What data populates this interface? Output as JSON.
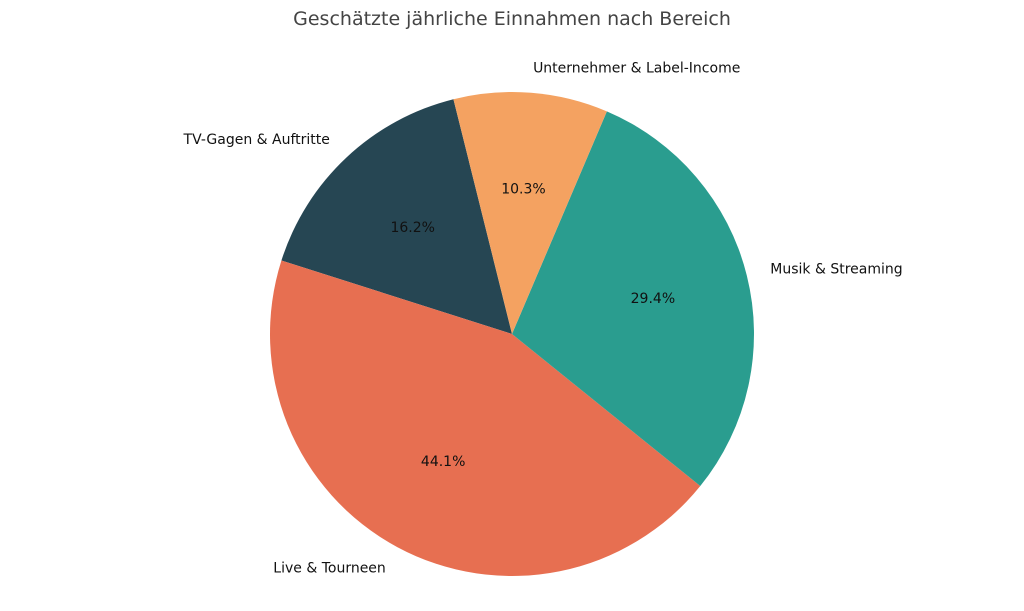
{
  "chart_data": {
    "type": "pie",
    "title": "Geschätzte jährliche Einnahmen nach Bereich",
    "slices": [
      {
        "label": "TV-Gagen & Auftritte",
        "value": 16.2,
        "pct_label": "16.2%",
        "color": "#264653"
      },
      {
        "label": "Live & Tourneen",
        "value": 44.1,
        "pct_label": "44.1%",
        "color": "#e76f51"
      },
      {
        "label": "Musik & Streaming",
        "value": 29.4,
        "pct_label": "29.4%",
        "color": "#2a9d8f"
      },
      {
        "label": "Unternehmer & Label-Income",
        "value": 10.3,
        "pct_label": "10.3%",
        "color": "#f4a261"
      }
    ]
  }
}
